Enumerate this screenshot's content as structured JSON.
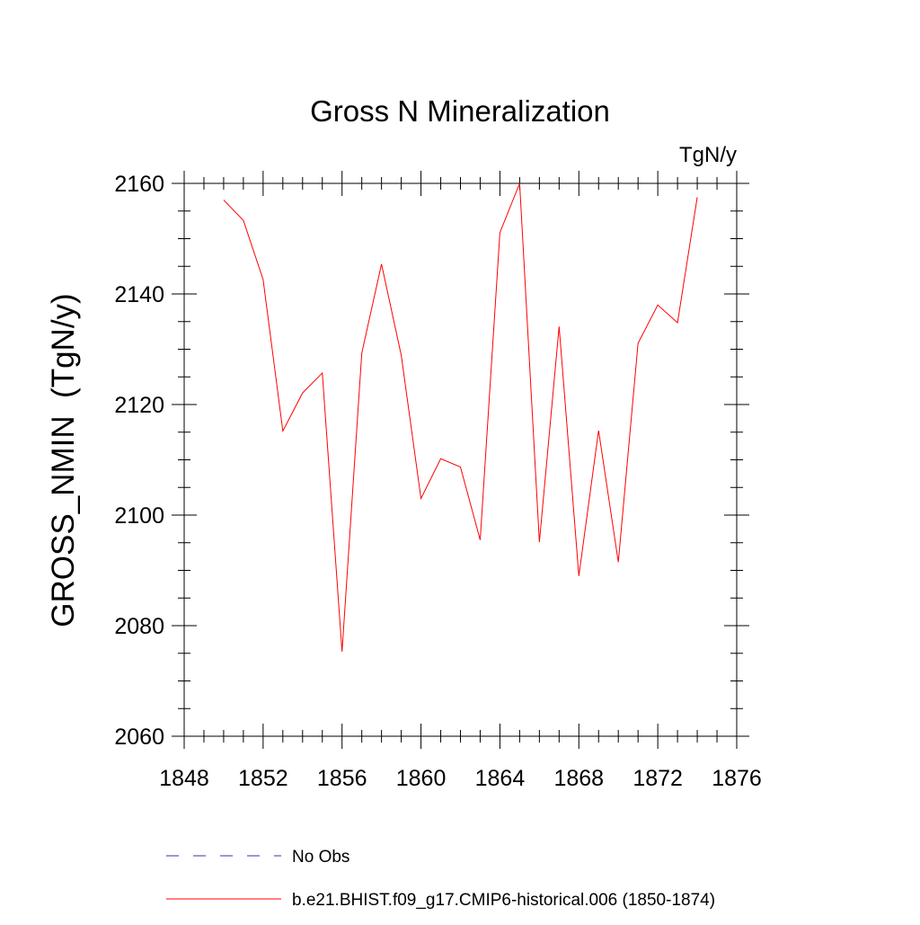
{
  "chart_data": {
    "type": "line",
    "title": "Gross N Mineralization",
    "units_label": "TgN/y",
    "ylabel": "GROSS_NMIN  (TgN/y)",
    "xlabel": "",
    "xlim": [
      1848,
      1876
    ],
    "ylim": [
      2060,
      2160
    ],
    "x_major_ticks": [
      1848,
      1852,
      1856,
      1860,
      1864,
      1868,
      1872,
      1876
    ],
    "x_minor_step": 1,
    "y_major_ticks": [
      2060,
      2080,
      2100,
      2120,
      2140,
      2160
    ],
    "y_minor_step": 5,
    "legend_position": "bottom",
    "series": [
      {
        "name": "b.e21.BHIST.f09_g17.CMIP6-historical.006 (1850-1874)",
        "color": "#ff0000",
        "style": "solid",
        "x": [
          1850,
          1851,
          1852,
          1853,
          1854,
          1855,
          1856,
          1857,
          1858,
          1859,
          1860,
          1861,
          1862,
          1863,
          1864,
          1865,
          1866,
          1867,
          1868,
          1869,
          1870,
          1871,
          1872,
          1873,
          1874
        ],
        "values": [
          2157.0,
          2153.3,
          2142.6,
          2115.2,
          2122.1,
          2125.7,
          2075.3,
          2129.3,
          2145.4,
          2128.9,
          2103.0,
          2110.2,
          2108.7,
          2095.5,
          2151.1,
          2160.0,
          2095.1,
          2134.1,
          2089.0,
          2115.3,
          2091.5,
          2131.1,
          2138.0,
          2134.8,
          2157.5
        ]
      }
    ],
    "legend": [
      {
        "label": "No Obs",
        "color": "#3333aa",
        "style": "dashed"
      },
      {
        "label": "b.e21.BHIST.f09_g17.CMIP6-historical.006 (1850-1874)",
        "color": "#ff0000",
        "style": "solid"
      }
    ]
  }
}
